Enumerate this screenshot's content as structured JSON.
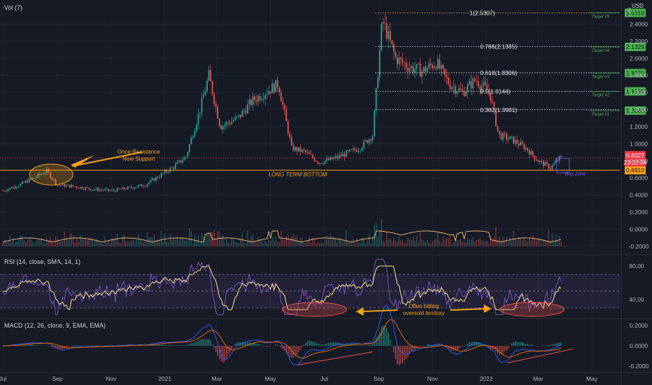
{
  "panes": {
    "main_label": "Vol (7)",
    "rsi_label": "RSI (14, close, SMA, 14, 1)",
    "macd_label": "MACD (12, 26, close, 9, EMA, EMA)",
    "currency": "USD"
  },
  "x_axis_labels": [
    "Jul",
    "Sep",
    "Nov",
    "2021",
    "Mar",
    "May",
    "Jul",
    "Sep",
    "Nov",
    "2022",
    "Mar",
    "May"
  ],
  "price_axis_labels": [
    "2.4000",
    "2.2000",
    "2.0000",
    "1.8000",
    "1.6000",
    "1.4000",
    "1.2000",
    "1.0000",
    "0.8000",
    "0.6000",
    "0.4000",
    "0.2000",
    "0.0000",
    "-0.2000"
  ],
  "price_axis_top": "2.",
  "rsi_axis_labels": [
    "80.00",
    "40.00"
  ],
  "macd_axis_labels": [
    "0.2000",
    "0.0000",
    "-0.2000"
  ],
  "fib_levels": [
    {
      "label": "1(2.5307)",
      "value": 2.5307,
      "color": "#f7a21b"
    },
    {
      "label": "0.786(2.1385)",
      "value": 2.1385,
      "color": "#e8e8e8"
    },
    {
      "label": "0.618(1.8306)",
      "value": 1.8306,
      "color": "#e8e8e8"
    },
    {
      "label": "0.5(1.6144)",
      "value": 1.6144,
      "color": "#e8e8e8"
    },
    {
      "label": "0.382(1.3981)",
      "value": 1.3981,
      "color": "#e8e8e8"
    }
  ],
  "targets": [
    {
      "label": "Target #5",
      "value": 2.5319,
      "tag": "2.5319"
    },
    {
      "label": "Target #4",
      "value": 2.1329,
      "tag": "2.1329"
    },
    {
      "label": "Target #3",
      "value": 1.827,
      "tag": "1.8270"
    },
    {
      "label": "Target #2",
      "value": 1.6136,
      "tag": "1.6136"
    },
    {
      "label": "Target #1",
      "value": 1.388,
      "tag": "1.3880"
    }
  ],
  "current_price": {
    "tag": "0.8327",
    "countdown": "23:22:24",
    "value": 0.8327
  },
  "support_price": {
    "tag": "0.6910",
    "value": 0.691
  },
  "annotations": {
    "resistance": [
      "Once Resistance",
      "Now Support"
    ],
    "long_term_bottom": "LONG TERM BOTTOM",
    "buy_zone": "Buy Zone",
    "oversold": [
      "Often hitting",
      "oversold territory"
    ]
  },
  "colors": {
    "background": "#161a25",
    "up": "#26a69a",
    "down": "#ef5350",
    "accent": "#f7a21b",
    "target_green": "#4caf50",
    "rsi_line": "#7e57c2",
    "rsi_ma": "#f5e08c",
    "macd_line": "#2962ff",
    "signal_line": "#ff6d00",
    "current_price_bg": "#f23645"
  },
  "chart_data": {
    "type": "candlestick",
    "price_series": [
      [
        "2020-07-01",
        0.45
      ],
      [
        "2020-07-20",
        0.52
      ],
      [
        "2020-08-05",
        0.6
      ],
      [
        "2020-08-20",
        0.68
      ],
      [
        "2020-09-01",
        0.52
      ],
      [
        "2020-09-20",
        0.5
      ],
      [
        "2020-10-10",
        0.47
      ],
      [
        "2020-11-01",
        0.45
      ],
      [
        "2020-11-20",
        0.48
      ],
      [
        "2020-12-10",
        0.52
      ],
      [
        "2020-12-25",
        0.62
      ],
      [
        "2021-01-10",
        0.72
      ],
      [
        "2021-01-25",
        0.85
      ],
      [
        "2021-02-10",
        1.4
      ],
      [
        "2021-02-20",
        1.8
      ],
      [
        "2021-03-05",
        1.2
      ],
      [
        "2021-03-25",
        1.3
      ],
      [
        "2021-04-10",
        1.5
      ],
      [
        "2021-04-25",
        1.6
      ],
      [
        "2021-05-10",
        1.7
      ],
      [
        "2021-05-25",
        0.95
      ],
      [
        "2021-06-10",
        0.9
      ],
      [
        "2021-06-25",
        0.78
      ],
      [
        "2021-07-10",
        0.82
      ],
      [
        "2021-07-25",
        0.88
      ],
      [
        "2021-08-10",
        0.95
      ],
      [
        "2021-08-25",
        1.1
      ],
      [
        "2021-09-05",
        2.45
      ],
      [
        "2021-09-20",
        2.0
      ],
      [
        "2021-10-05",
        1.9
      ],
      [
        "2021-10-20",
        1.85
      ],
      [
        "2021-11-05",
        1.95
      ],
      [
        "2021-11-20",
        1.7
      ],
      [
        "2021-12-05",
        1.6
      ],
      [
        "2021-12-20",
        1.75
      ],
      [
        "2022-01-05",
        1.6
      ],
      [
        "2022-01-15",
        1.1
      ],
      [
        "2022-01-30",
        1.05
      ],
      [
        "2022-02-15",
        0.95
      ],
      [
        "2022-03-01",
        0.8
      ],
      [
        "2022-03-15",
        0.72
      ],
      [
        "2022-03-25",
        0.83
      ]
    ],
    "rsi_bands": [
      70,
      30
    ],
    "y_range_price": [
      -0.25,
      2.6
    ],
    "y_range_rsi": [
      20,
      90
    ],
    "y_range_macd": [
      -0.25,
      0.25
    ]
  }
}
